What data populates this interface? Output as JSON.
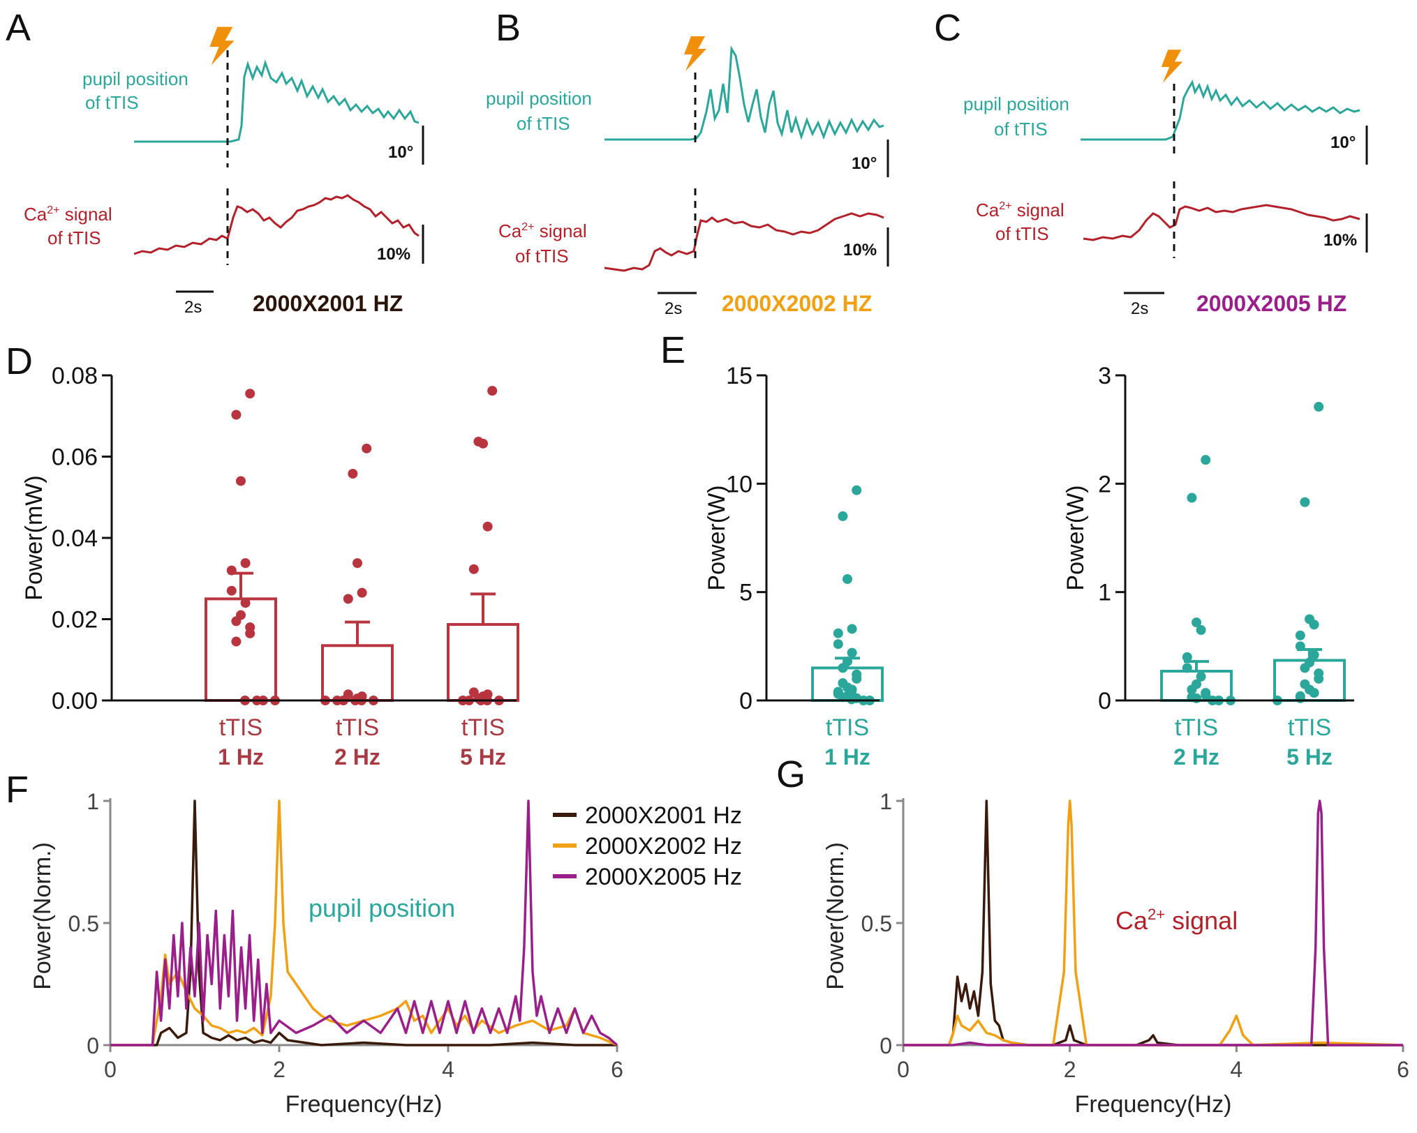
{
  "panels": {
    "A": {
      "letter": "A",
      "pupil_label_1": "pupil position",
      "pupil_label_2": "of tTIS",
      "ca_label_1": "Ca",
      "ca_label_sup": "2+",
      "ca_label_2": " signal",
      "ca_label_3": "of tTIS",
      "deg_scale": "10°",
      "pct_scale": "10%",
      "time_scale": "2s",
      "freq_title": "2000X2001 HZ"
    },
    "B": {
      "letter": "B",
      "pupil_label_1": "pupil position",
      "pupil_label_2": "of tTIS",
      "ca_label_1": "Ca",
      "ca_label_sup": "2+",
      "ca_label_2": " signal",
      "ca_label_3": "of tTIS",
      "deg_scale": "10°",
      "pct_scale": "10%",
      "time_scale": "2s",
      "freq_title": "2000X2002 HZ"
    },
    "C": {
      "letter": "C",
      "pupil_label_1": "pupil position",
      "pupil_label_2": "of tTIS",
      "ca_label_1": "Ca",
      "ca_label_sup": "2+",
      "ca_label_2": " signal",
      "ca_label_3": "of tTIS",
      "deg_scale": "10°",
      "pct_scale": "10%",
      "time_scale": "2s",
      "freq_title": "2000X2005 HZ"
    },
    "D": {
      "letter": "D"
    },
    "E": {
      "letter": "E"
    },
    "F": {
      "letter": "F",
      "annotation": "pupil position"
    },
    "G": {
      "letter": "G",
      "annotation_1": "Ca",
      "annotation_sup": "2+",
      "annotation_2": " signal"
    }
  },
  "colors": {
    "teal": "#2aa69a",
    "crimson": "#b3202a",
    "brown": "#3a1a0a",
    "orange": "#f0a012",
    "purple": "#9b1f8a",
    "bar_red": "#b8343e",
    "bolt": "#f0900a"
  },
  "chart_data": [
    {
      "id": "D",
      "type": "bar",
      "ylabel": "Power(mW)",
      "ylim": [
        0,
        0.08
      ],
      "yticks": [
        "0.00",
        "0.02",
        "0.04",
        "0.06",
        "0.08"
      ],
      "yticks_values": [
        0,
        0.02,
        0.04,
        0.06,
        0.08
      ],
      "categories": [
        {
          "line1": "tTIS",
          "line2": "1 Hz"
        },
        {
          "line1": "tTIS",
          "line2": "2 Hz"
        },
        {
          "line1": "tTIS",
          "line2": "5 Hz"
        }
      ],
      "values": [
        0.025,
        0.0135,
        0.0187
      ],
      "errors": [
        0.0063,
        0.0058,
        0.0075
      ],
      "points": [
        [
          0.0755,
          0.0703,
          0.054,
          0.0338,
          0.032,
          0.027,
          0.024,
          0.021,
          0.0195,
          0.018,
          0.0165,
          0.0145,
          0.0,
          0.0,
          0.0,
          0.0
        ],
        [
          0.062,
          0.0558,
          0.0338,
          0.0265,
          0.025,
          0.0015,
          0.001,
          0.0005,
          0.0,
          0.0,
          0.0,
          0.0,
          0.0,
          0.0
        ],
        [
          0.0762,
          0.0637,
          0.0632,
          0.0428,
          0.0323,
          0.002,
          0.0015,
          0.001,
          0.0005,
          0.0,
          0.0,
          0.0,
          0.0,
          0.0
        ]
      ]
    },
    {
      "id": "E1",
      "type": "bar",
      "ylabel": "Power(W)",
      "ylim": [
        0,
        15
      ],
      "yticks": [
        "0",
        "5",
        "10",
        "15"
      ],
      "yticks_values": [
        0,
        5,
        10,
        15
      ],
      "categories": [
        {
          "line1": "tTIS",
          "line2": "1 Hz"
        }
      ],
      "values": [
        1.5
      ],
      "errors": [
        0.45
      ],
      "points": [
        [
          9.7,
          8.5,
          5.6,
          3.3,
          3.1,
          2.6,
          2.2,
          1.8,
          1.5,
          1.2,
          1.0,
          0.8,
          0.6,
          0.5,
          0.4,
          0.3,
          0.25,
          0.2,
          0.15,
          0.1,
          0.05,
          0.0,
          0.0
        ]
      ]
    },
    {
      "id": "E2",
      "type": "bar",
      "ylabel": "Power(W)",
      "ylim": [
        0,
        3
      ],
      "yticks": [
        "0",
        "1",
        "2",
        "3"
      ],
      "yticks_values": [
        0,
        1,
        2,
        3
      ],
      "categories": [
        {
          "line1": "tTIS",
          "line2": "2 Hz"
        },
        {
          "line1": "tTIS",
          "line2": "5 Hz"
        }
      ],
      "values": [
        0.27,
        0.37
      ],
      "errors": [
        0.09,
        0.1
      ],
      "points": [
        [
          2.22,
          1.87,
          0.72,
          0.65,
          0.4,
          0.3,
          0.22,
          0.15,
          0.1,
          0.07,
          0.05,
          0.03,
          0.02,
          0.0,
          0.0,
          0.0
        ],
        [
          2.71,
          1.83,
          0.75,
          0.7,
          0.6,
          0.5,
          0.42,
          0.35,
          0.3,
          0.25,
          0.2,
          0.15,
          0.1,
          0.07,
          0.04,
          0.02,
          0.0
        ]
      ]
    },
    {
      "id": "F",
      "type": "line",
      "xlabel": "Frequency(Hz)",
      "ylabel": "Power(Norm.)",
      "xlim": [
        0,
        6
      ],
      "ylim": [
        0,
        1
      ],
      "xticks": [
        "0",
        "2",
        "4",
        "6"
      ],
      "xticks_values": [
        0,
        2,
        4,
        6
      ],
      "yticks": [
        "0",
        "0.5",
        "1"
      ],
      "yticks_values": [
        0,
        0.5,
        1
      ],
      "legend": "top-right",
      "series": [
        {
          "name": "2000X2001 Hz",
          "color": "#3a1a0a",
          "x": [
            0,
            0.55,
            0.6,
            0.7,
            0.8,
            0.9,
            0.95,
            1.0,
            1.05,
            1.1,
            1.2,
            1.3,
            1.4,
            1.5,
            1.6,
            1.7,
            1.8,
            1.9,
            2.0,
            2.1,
            2.3,
            2.5,
            3.0,
            3.5,
            4.0,
            4.5,
            5.0,
            5.5,
            6.0
          ],
          "y": [
            0,
            0,
            0.05,
            0.07,
            0.03,
            0.05,
            0.3,
            1.0,
            0.3,
            0.05,
            0.03,
            0.02,
            0.04,
            0.02,
            0.03,
            0.01,
            0.02,
            0.01,
            0.05,
            0.02,
            0.01,
            0.0,
            0.01,
            0.0,
            0.0,
            0.0,
            0.01,
            0.0,
            0.0
          ]
        },
        {
          "name": "2000X2002 Hz",
          "color": "#f0a012",
          "x": [
            0,
            0.5,
            0.6,
            0.65,
            0.7,
            0.8,
            0.9,
            1.0,
            1.1,
            1.2,
            1.3,
            1.4,
            1.5,
            1.6,
            1.7,
            1.8,
            1.9,
            1.95,
            2.0,
            2.05,
            2.1,
            2.2,
            2.3,
            2.4,
            2.5,
            2.6,
            2.8,
            3.0,
            3.2,
            3.4,
            3.5,
            3.6,
            3.7,
            3.8,
            3.9,
            4.0,
            4.1,
            4.2,
            4.3,
            4.4,
            4.6,
            4.8,
            5.0,
            5.2,
            5.4,
            5.5,
            5.6,
            5.8,
            6.0
          ],
          "y": [
            0,
            0,
            0.2,
            0.37,
            0.25,
            0.3,
            0.22,
            0.15,
            0.12,
            0.08,
            0.07,
            0.05,
            0.06,
            0.05,
            0.07,
            0.04,
            0.2,
            0.5,
            1.0,
            0.5,
            0.3,
            0.25,
            0.2,
            0.15,
            0.12,
            0.1,
            0.08,
            0.1,
            0.12,
            0.15,
            0.18,
            0.1,
            0.12,
            0.05,
            0.1,
            0.15,
            0.08,
            0.12,
            0.06,
            0.1,
            0.05,
            0.08,
            0.1,
            0.06,
            0.08,
            0.15,
            0.05,
            0.03,
            0.0
          ]
        },
        {
          "name": "2000X2005 Hz",
          "color": "#9b1f8a",
          "x": [
            0,
            0.5,
            0.55,
            0.6,
            0.65,
            0.7,
            0.75,
            0.8,
            0.85,
            0.9,
            0.95,
            1.0,
            1.05,
            1.1,
            1.15,
            1.2,
            1.25,
            1.3,
            1.35,
            1.4,
            1.45,
            1.5,
            1.55,
            1.6,
            1.65,
            1.7,
            1.75,
            1.8,
            1.85,
            1.9,
            2.0,
            2.2,
            2.4,
            2.6,
            2.8,
            3.0,
            3.2,
            3.4,
            3.5,
            3.6,
            3.7,
            3.8,
            3.9,
            4.0,
            4.1,
            4.2,
            4.3,
            4.4,
            4.5,
            4.6,
            4.7,
            4.8,
            4.85,
            4.9,
            4.95,
            5.0,
            5.05,
            5.1,
            5.2,
            5.3,
            5.4,
            5.5,
            5.6,
            5.7,
            5.8,
            5.9,
            6.0
          ],
          "y": [
            0,
            0,
            0.3,
            0.1,
            0.35,
            0.15,
            0.45,
            0.2,
            0.5,
            0.15,
            0.4,
            0.2,
            0.5,
            0.1,
            0.45,
            0.25,
            0.55,
            0.15,
            0.45,
            0.2,
            0.55,
            0.1,
            0.4,
            0.15,
            0.45,
            0.1,
            0.35,
            0.05,
            0.25,
            0.05,
            0.1,
            0.05,
            0.08,
            0.12,
            0.05,
            0.1,
            0.05,
            0.15,
            0.05,
            0.18,
            0.05,
            0.18,
            0.05,
            0.18,
            0.05,
            0.18,
            0.05,
            0.15,
            0.05,
            0.15,
            0.05,
            0.2,
            0.1,
            0.4,
            1.0,
            0.3,
            0.12,
            0.2,
            0.05,
            0.15,
            0.05,
            0.15,
            0.05,
            0.12,
            0.05,
            0.03,
            0.0
          ]
        }
      ]
    },
    {
      "id": "G",
      "type": "line",
      "xlabel": "Frequency(Hz)",
      "ylabel": "Power(Norm.)",
      "xlim": [
        0,
        6
      ],
      "ylim": [
        0,
        1
      ],
      "xticks": [
        "0",
        "2",
        "4",
        "6"
      ],
      "xticks_values": [
        0,
        2,
        4,
        6
      ],
      "yticks": [
        "0",
        "0.5",
        "1"
      ],
      "yticks_values": [
        0,
        0.5,
        1
      ],
      "series": [
        {
          "name": "2000X2001 Hz",
          "color": "#3a1a0a",
          "x": [
            0,
            0.55,
            0.6,
            0.65,
            0.7,
            0.75,
            0.8,
            0.85,
            0.9,
            0.95,
            1.0,
            1.05,
            1.1,
            1.15,
            1.2,
            1.3,
            1.5,
            1.8,
            1.95,
            2.0,
            2.05,
            2.2,
            2.8,
            2.95,
            3.0,
            3.05,
            3.3,
            6.0
          ],
          "y": [
            0,
            0,
            0.05,
            0.28,
            0.18,
            0.25,
            0.15,
            0.22,
            0.12,
            0.3,
            1.0,
            0.25,
            0.1,
            0.08,
            0.02,
            0.01,
            0.0,
            0.0,
            0.02,
            0.08,
            0.02,
            0.0,
            0.0,
            0.02,
            0.04,
            0.01,
            0.0,
            0.0
          ]
        },
        {
          "name": "2000X2002 Hz",
          "color": "#f0a012",
          "x": [
            0,
            0.55,
            0.6,
            0.65,
            0.7,
            0.8,
            0.9,
            1.0,
            1.1,
            1.2,
            1.3,
            1.5,
            1.8,
            1.93,
            1.98,
            2.0,
            2.02,
            2.07,
            2.2,
            3.0,
            3.8,
            3.92,
            4.0,
            4.08,
            4.2,
            5.0,
            6.0
          ],
          "y": [
            0,
            0,
            0.05,
            0.12,
            0.08,
            0.06,
            0.1,
            0.05,
            0.04,
            0.02,
            0.01,
            0.0,
            0.0,
            0.3,
            0.9,
            1.0,
            0.9,
            0.3,
            0.0,
            0.0,
            0.0,
            0.06,
            0.12,
            0.04,
            0.0,
            0.01,
            0.0
          ]
        },
        {
          "name": "2000X2005 Hz",
          "color": "#9b1f8a",
          "x": [
            0,
            0.6,
            0.8,
            1.0,
            2.0,
            3.0,
            4.0,
            4.9,
            4.95,
            4.98,
            5.0,
            5.02,
            5.05,
            5.1,
            6.0
          ],
          "y": [
            0,
            0,
            0.01,
            0.0,
            0.0,
            0.0,
            0.0,
            0.0,
            0.4,
            0.95,
            1.0,
            0.95,
            0.4,
            0.0,
            0.0
          ]
        }
      ]
    }
  ]
}
